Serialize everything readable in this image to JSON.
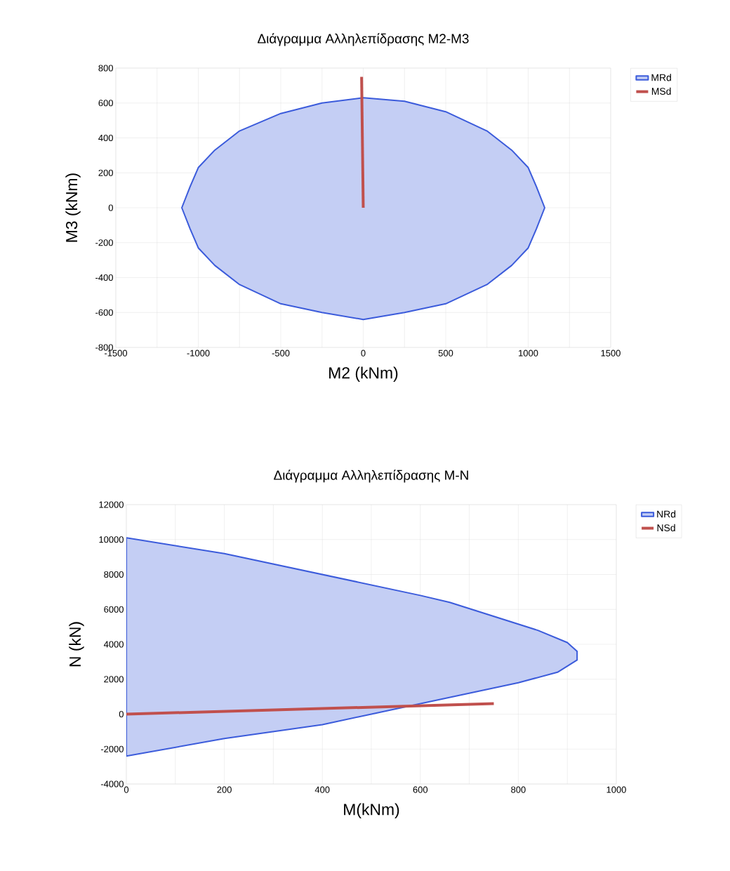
{
  "chart_data": [
    {
      "type": "area",
      "title": "Διάγραμμα Αλληλεπίδρασης M2-M3",
      "xlabel": "M2 (kNm)",
      "ylabel": "M3 (kNm)",
      "xlim": [
        -1500,
        1500
      ],
      "xticks": [
        -1500,
        {
          "value": -1250,
          "label": null
        },
        -1000,
        {
          "value": -750,
          "label": null
        },
        -500,
        {
          "value": -250,
          "label": null
        },
        0,
        {
          "value": 250,
          "label": null
        },
        500,
        {
          "value": 750,
          "label": null
        },
        1000,
        {
          "value": 1250,
          "label": null
        },
        1500
      ],
      "ylim": [
        -800,
        800
      ],
      "yticks": [
        -800,
        -600,
        -400,
        -200,
        0,
        200,
        400,
        600,
        800
      ],
      "grid": true,
      "legend": "right",
      "series": [
        {
          "name": "MRd",
          "color": "#3b5bdb",
          "x": [
            -1100,
            -1050,
            -1000,
            -900,
            -750,
            -500,
            -250,
            0,
            250,
            500,
            750,
            900,
            1000,
            1050,
            1100,
            1050,
            1000,
            900,
            750,
            500,
            250,
            0,
            -250,
            -500,
            -750,
            -900,
            -1000,
            -1050,
            -1100
          ],
          "values": [
            0,
            120,
            230,
            330,
            440,
            540,
            600,
            630,
            610,
            550,
            440,
            330,
            230,
            120,
            0,
            -120,
            -230,
            -330,
            -440,
            -550,
            -600,
            -640,
            -600,
            -550,
            -440,
            -330,
            -230,
            -120,
            0
          ]
        },
        {
          "name": "MSd",
          "type": "line",
          "color": "#c0504d",
          "x": [
            0,
            -10
          ],
          "values": [
            0,
            750
          ]
        }
      ]
    },
    {
      "type": "area",
      "title": "Διάγραμμα Αλληλεπίδρασης M-N",
      "xlabel": "M(kNm)",
      "ylabel": "N (kN)",
      "xlim": [
        0,
        1000
      ],
      "xticks": [
        0,
        {
          "value": 100,
          "label": null
        },
        200,
        {
          "value": 300,
          "label": null
        },
        400,
        {
          "value": 500,
          "label": null
        },
        600,
        {
          "value": 700,
          "label": null
        },
        800,
        {
          "value": 900,
          "label": null
        },
        1000
      ],
      "ylim": [
        -4000,
        12000
      ],
      "yticks": [
        -4000,
        -2000,
        0,
        2000,
        4000,
        6000,
        8000,
        10000,
        12000
      ],
      "grid": true,
      "legend": "right",
      "series": [
        {
          "name": "NRd",
          "color": "#3b5bdb",
          "x": [
            0,
            200,
            400,
            600,
            660,
            840,
            900,
            920,
            920,
            880,
            800,
            700,
            600,
            500,
            400,
            200,
            0,
            0
          ],
          "values": [
            10100,
            9200,
            8000,
            6800,
            6400,
            4800,
            4100,
            3600,
            3100,
            2400,
            1800,
            1200,
            600,
            0,
            -600,
            -1400,
            -2400,
            10100
          ]
        },
        {
          "name": "NSd",
          "type": "line",
          "color": "#c0504d",
          "x": [
            0,
            750
          ],
          "values": [
            0,
            600
          ]
        }
      ]
    }
  ]
}
